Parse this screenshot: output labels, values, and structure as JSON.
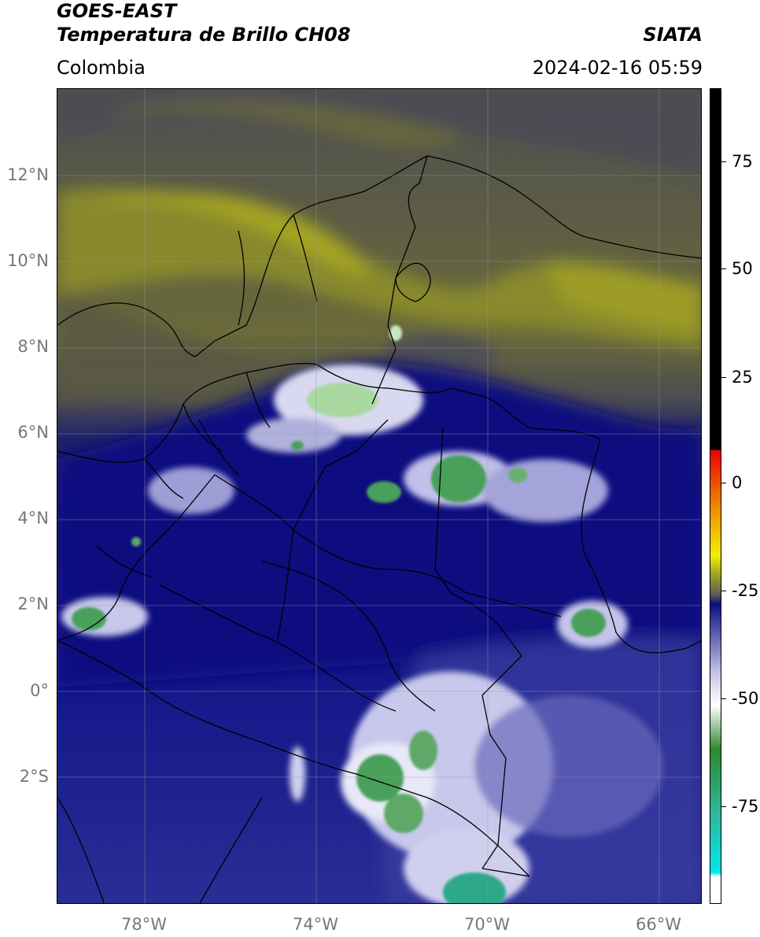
{
  "header": {
    "satellite": "GOES-EAST",
    "product": "Temperatura de Brillo CH08",
    "region": "Colombia",
    "agency": "SIATA",
    "datetime": "2024-02-16 05:59"
  },
  "map": {
    "lat_ticks": [
      "12°N",
      "10°N",
      "8°N",
      "6°N",
      "4°N",
      "2°N",
      "0°",
      "2°S"
    ],
    "lon_ticks": [
      "78°W",
      "74°W",
      "70°W",
      "66°W"
    ],
    "lon_range": [
      -80,
      -65
    ],
    "lat_range": [
      -5,
      14
    ]
  },
  "colorbar": {
    "ticks": [
      "75",
      "50",
      "25",
      "0",
      "-25",
      "-50",
      "-75"
    ],
    "range": [
      -95,
      90
    ],
    "colors": {
      "black": "#000000",
      "red": "#e80000",
      "orange": "#f08a00",
      "yellow": "#f2ee00",
      "olive": "#a8a820",
      "gray": "#5a5a5a",
      "navy": "#0a0f82",
      "lavender": "#c8c8e8",
      "white": "#ffffff",
      "green": "#2e8a2e",
      "teal": "#2fb8a0",
      "cyan": "#00e8e8"
    }
  }
}
